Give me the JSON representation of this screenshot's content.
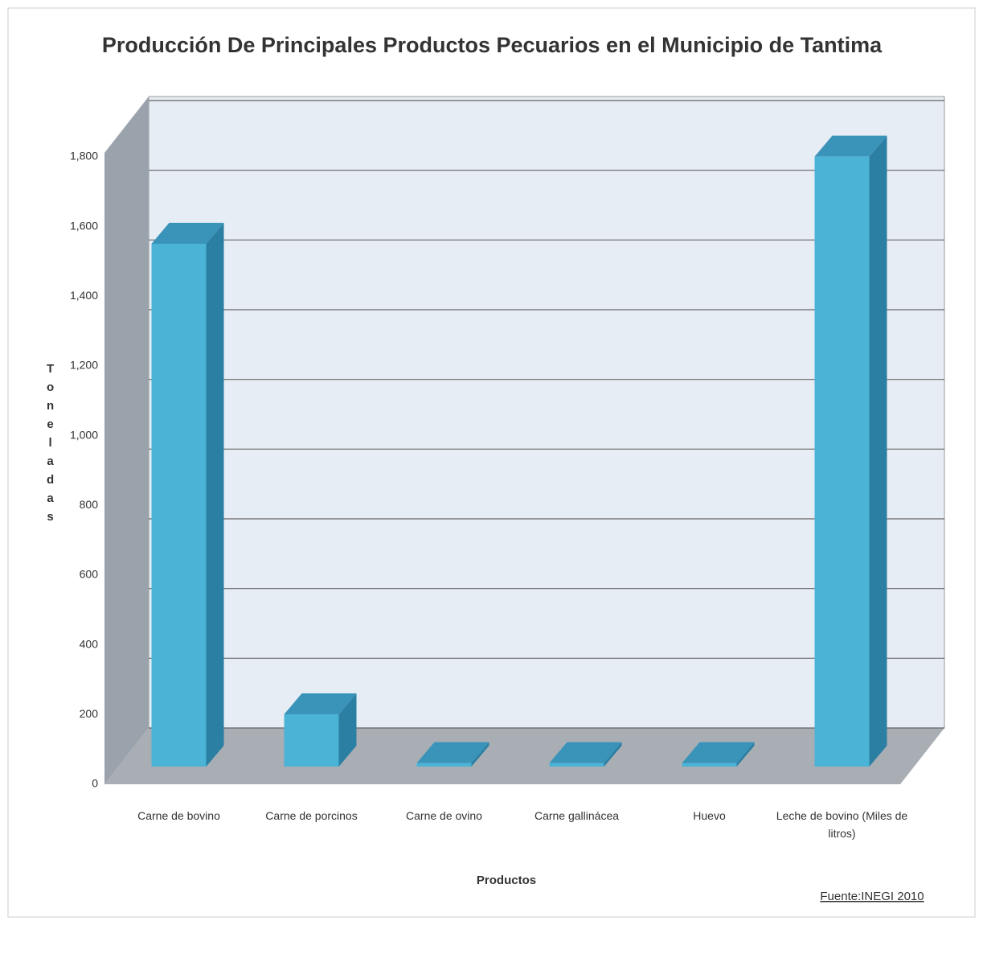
{
  "chart_data": {
    "type": "bar3d",
    "title": "Producción De Principales Productos Pecuarios en el Municipio de Tantima",
    "x_label": "Productos",
    "y_label": "Toneladas",
    "source": "Fuente:INEGI 2010",
    "categories": [
      "Carne de bovino",
      "Carne de porcinos",
      "Carne de ovino",
      "Carne gallinácea",
      "Huevo",
      "Leche de bovino (Miles de litros)"
    ],
    "values": [
      1500,
      150,
      10,
      10,
      10,
      1750
    ],
    "color": "#4ab3d6",
    "ylim": [
      0,
      1800
    ],
    "yticks": [
      0,
      200,
      400,
      600,
      800,
      {
        "value": 1000,
        "label": "1,000"
      },
      {
        "value": 1200,
        "label": "1,200"
      },
      {
        "value": 1400,
        "label": "1,400"
      },
      {
        "value": 1600,
        "label": "1,600"
      },
      {
        "value": 1800,
        "label": "1,800"
      }
    ],
    "grid": true
  }
}
